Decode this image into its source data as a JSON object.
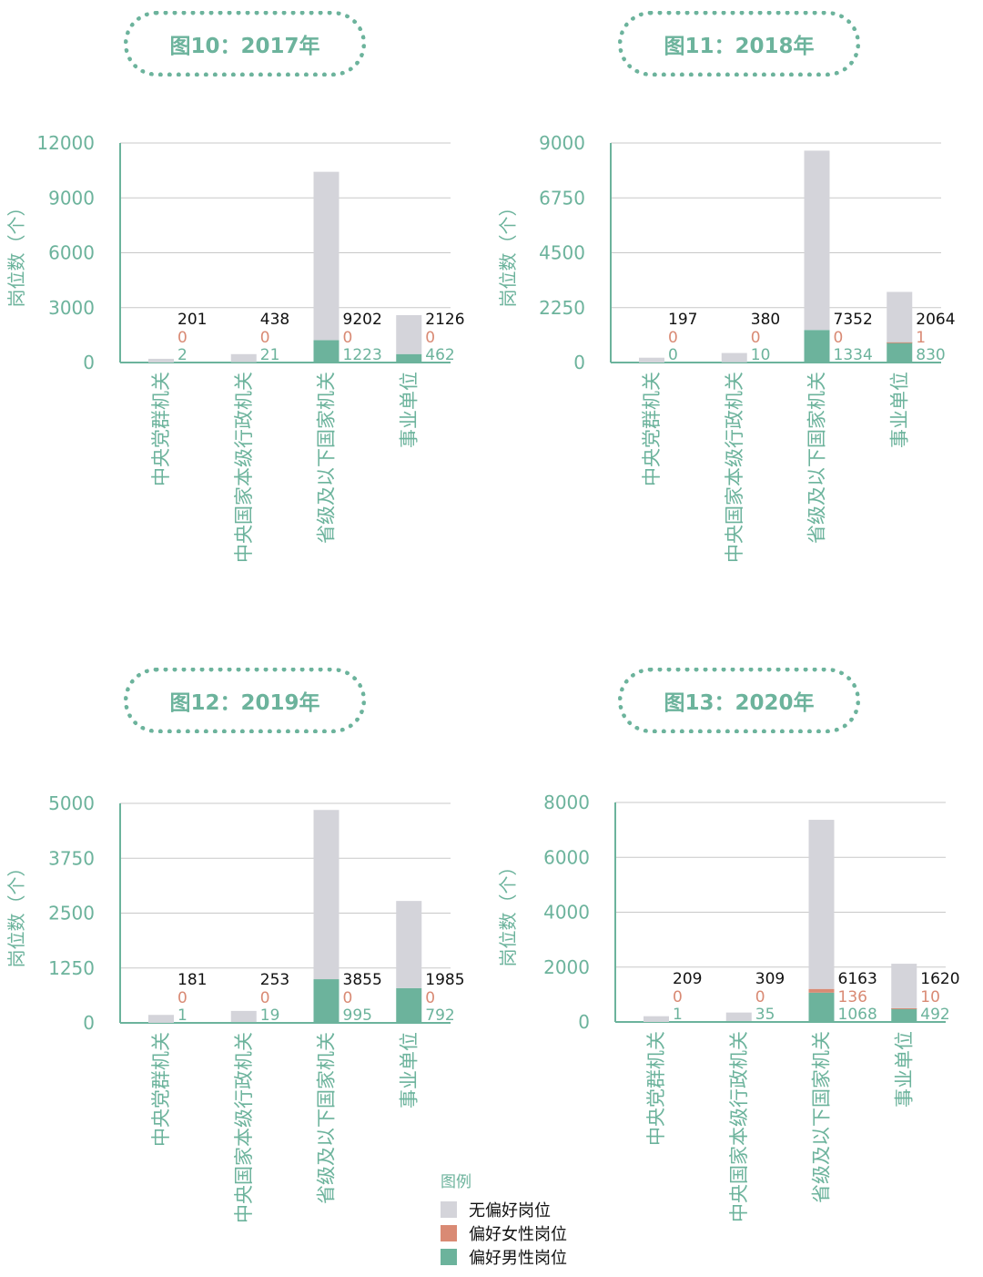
{
  "colors": {
    "none": "#d4d4da",
    "female": "#d98a74",
    "male": "#6cb39c",
    "axis": "#6cb39c",
    "grid": "#c8c8c8",
    "accent": "#6cb39c"
  },
  "legend": {
    "title": "图例",
    "items": [
      {
        "key": "none",
        "label": "无偏好岗位"
      },
      {
        "key": "female",
        "label": "偏好女性岗位"
      },
      {
        "key": "male",
        "label": "偏好男性岗位"
      }
    ]
  },
  "chart_data": [
    {
      "type": "bar",
      "stacked": true,
      "title": "图10：2017年",
      "ylabel": "岗位数（个）",
      "ylim": [
        0,
        12000
      ],
      "yticks": [
        0,
        3000,
        6000,
        9000,
        12000
      ],
      "categories": [
        "中央党群机关",
        "中央国家本级行政机关",
        "省级及以下国家机关",
        "事业单位"
      ],
      "series": [
        {
          "key": "male",
          "name": "偏好男性岗位",
          "values": [
            2,
            21,
            1223,
            462
          ]
        },
        {
          "key": "female",
          "name": "偏好女性岗位",
          "values": [
            0,
            0,
            0,
            0
          ]
        },
        {
          "key": "none",
          "name": "无偏好岗位",
          "values": [
            201,
            438,
            9202,
            2126
          ]
        }
      ]
    },
    {
      "type": "bar",
      "stacked": true,
      "title": "图11：2018年",
      "ylabel": "岗位数（个）",
      "ylim": [
        0,
        9000
      ],
      "yticks": [
        0,
        2250,
        4500,
        6750,
        9000
      ],
      "categories": [
        "中央党群机关",
        "中央国家本级行政机关",
        "省级及以下国家机关",
        "事业单位"
      ],
      "series": [
        {
          "key": "male",
          "name": "偏好男性岗位",
          "values": [
            0,
            10,
            1334,
            830
          ]
        },
        {
          "key": "female",
          "name": "偏好女性岗位",
          "values": [
            0,
            0,
            0,
            1
          ]
        },
        {
          "key": "none",
          "name": "无偏好岗位",
          "values": [
            197,
            380,
            7352,
            2064
          ]
        }
      ]
    },
    {
      "type": "bar",
      "stacked": true,
      "title": "图12：2019年",
      "ylabel": "岗位数（个）",
      "ylim": [
        0,
        5000
      ],
      "yticks": [
        0,
        1250,
        2500,
        3750,
        5000
      ],
      "categories": [
        "中央党群机关",
        "中央国家本级行政机关",
        "省级及以下国家机关",
        "事业单位"
      ],
      "series": [
        {
          "key": "male",
          "name": "偏好男性岗位",
          "values": [
            1,
            19,
            995,
            792
          ]
        },
        {
          "key": "female",
          "name": "偏好女性岗位",
          "values": [
            0,
            0,
            0,
            0
          ]
        },
        {
          "key": "none",
          "name": "无偏好岗位",
          "values": [
            181,
            253,
            3855,
            1985
          ]
        }
      ]
    },
    {
      "type": "bar",
      "stacked": true,
      "title": "图13：2020年",
      "ylabel": "岗位数（个）",
      "ylim": [
        0,
        8000
      ],
      "yticks": [
        0,
        2000,
        4000,
        6000,
        8000
      ],
      "categories": [
        "中央党群机关",
        "中央国家本级行政机关",
        "省级及以下国家机关",
        "事业单位"
      ],
      "series": [
        {
          "key": "male",
          "name": "偏好男性岗位",
          "values": [
            1,
            35,
            1068,
            492
          ]
        },
        {
          "key": "female",
          "name": "偏好女性岗位",
          "values": [
            0,
            0,
            136,
            10
          ]
        },
        {
          "key": "none",
          "name": "无偏好岗位",
          "values": [
            209,
            309,
            6163,
            1620
          ]
        }
      ]
    }
  ]
}
